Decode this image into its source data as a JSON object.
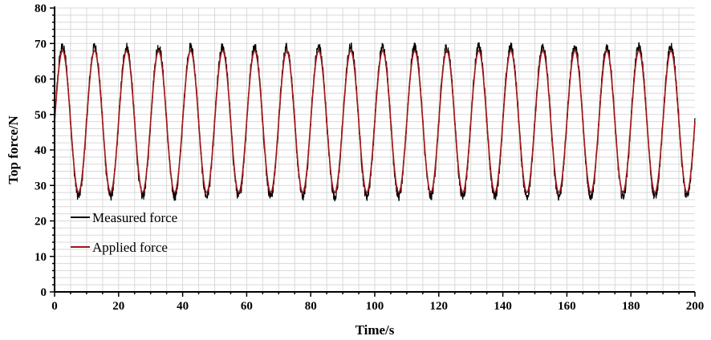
{
  "chart_data": {
    "type": "line",
    "title": "",
    "xlabel": "Time/s",
    "ylabel": "Top force/N",
    "xlim": [
      0,
      200
    ],
    "ylim": [
      0,
      80
    ],
    "x_ticks": [
      0,
      20,
      40,
      60,
      80,
      100,
      120,
      140,
      160,
      180,
      200
    ],
    "y_ticks": [
      0,
      10,
      20,
      30,
      40,
      50,
      60,
      70,
      80
    ],
    "x_tick_labels": [
      "0",
      "20",
      "40",
      "60",
      "80",
      "100",
      "120",
      "140",
      "160",
      "180",
      "200"
    ],
    "y_tick_labels": [
      "0",
      "10",
      "20",
      "30",
      "40",
      "50",
      "60",
      "70",
      "80"
    ],
    "grid": true,
    "legend_position": "lower-left",
    "series": [
      {
        "name": "Measured force",
        "color": "#000000",
        "mean": 48,
        "amplitude": 21,
        "period": 10,
        "phase_start_value": 48,
        "noise": 1.5
      },
      {
        "name": "Applied force",
        "color": "#a31515",
        "mean": 48,
        "amplitude": 20,
        "period": 10,
        "phase_start_value": 48,
        "noise": 0
      }
    ]
  }
}
